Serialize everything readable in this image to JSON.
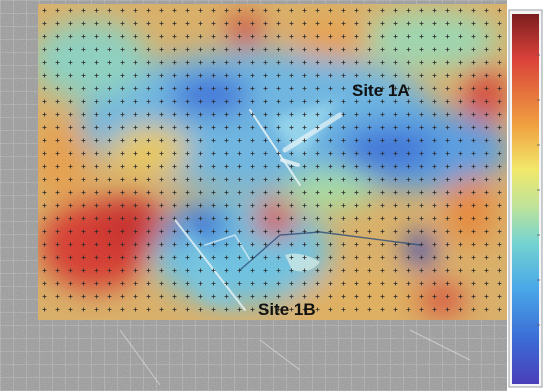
{
  "labels": {
    "site_1a": "Site 1A",
    "site_1b": "Site 1B"
  },
  "colormap": {
    "name": "jet",
    "stops": [
      "#7b1e1e",
      "#d9413a",
      "#f0a040",
      "#f2e86a",
      "#bfe39a",
      "#74d3d0",
      "#4aa8e8",
      "#3b6bd6",
      "#4a3fb8"
    ]
  },
  "colors": {
    "sem_background": "#9c9c9c",
    "grid_marker": "#2a2a2a",
    "label_text": "#111111"
  }
}
